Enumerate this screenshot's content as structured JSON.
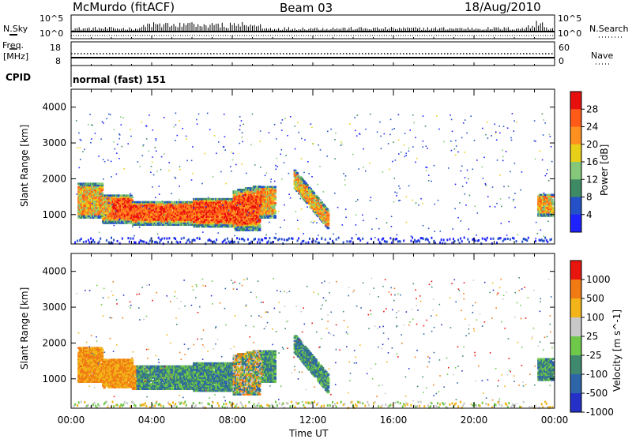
{
  "header": {
    "station": "McMurdo (fitACF)",
    "beam": "Beam 03",
    "date": "18/Aug/2010"
  },
  "status_panels": {
    "nsky_label": "N.Sky",
    "nsearch_label": "N.Search",
    "nsky_ticks": [
      "10^5",
      "10^0"
    ],
    "nsearch_ticks": [
      "10^5",
      "10^0"
    ],
    "freq_label_line1": "Freq.",
    "freq_label_line2": "[MHz]",
    "freq_ticks": [
      "18",
      "8"
    ],
    "nave_label": "Nave",
    "nave_ticks": [
      "60",
      "0"
    ],
    "cpid_label": "CPID",
    "cpid_value": "normal (fast) 151"
  },
  "chart_data": [
    {
      "type": "heatmap",
      "panel": "power",
      "ylabel": "Slant Range [km]",
      "yticks": [
        "4000",
        "3000",
        "2000",
        "1000"
      ],
      "ylim": [
        180,
        4500
      ],
      "xlim": [
        0,
        24
      ],
      "colorbar": {
        "label": "Power [dB]",
        "ticks": [
          "28",
          "24",
          "20",
          "16",
          "12",
          "8",
          "4"
        ],
        "colors": [
          "#1e22ff",
          "#2450c8",
          "#3d8a64",
          "#86c87a",
          "#e8d018",
          "#ff9020",
          "#ff5a18",
          "#e8100e"
        ]
      }
    },
    {
      "type": "heatmap",
      "panel": "velocity",
      "xlabel": "Time UT",
      "ylabel": "Slant Range [km]",
      "xticks": [
        "00:00",
        "04:00",
        "08:00",
        "12:00",
        "16:00",
        "20:00",
        "00:00"
      ],
      "yticks": [
        "4000",
        "3000",
        "2000",
        "1000"
      ],
      "ylim": [
        180,
        4500
      ],
      "xlim": [
        0,
        24
      ],
      "colorbar": {
        "label": "Velocity [m s^-1]",
        "ticks": [
          "1000",
          "500",
          "100",
          "25",
          "-25",
          "-100",
          "-500",
          "-1000"
        ],
        "colors": [
          "#2430c8",
          "#2e64a8",
          "#3f8a6e",
          "#6fc84a",
          "#c8c8c8",
          "#f2b418",
          "#f07a14",
          "#e8160e"
        ]
      }
    }
  ]
}
